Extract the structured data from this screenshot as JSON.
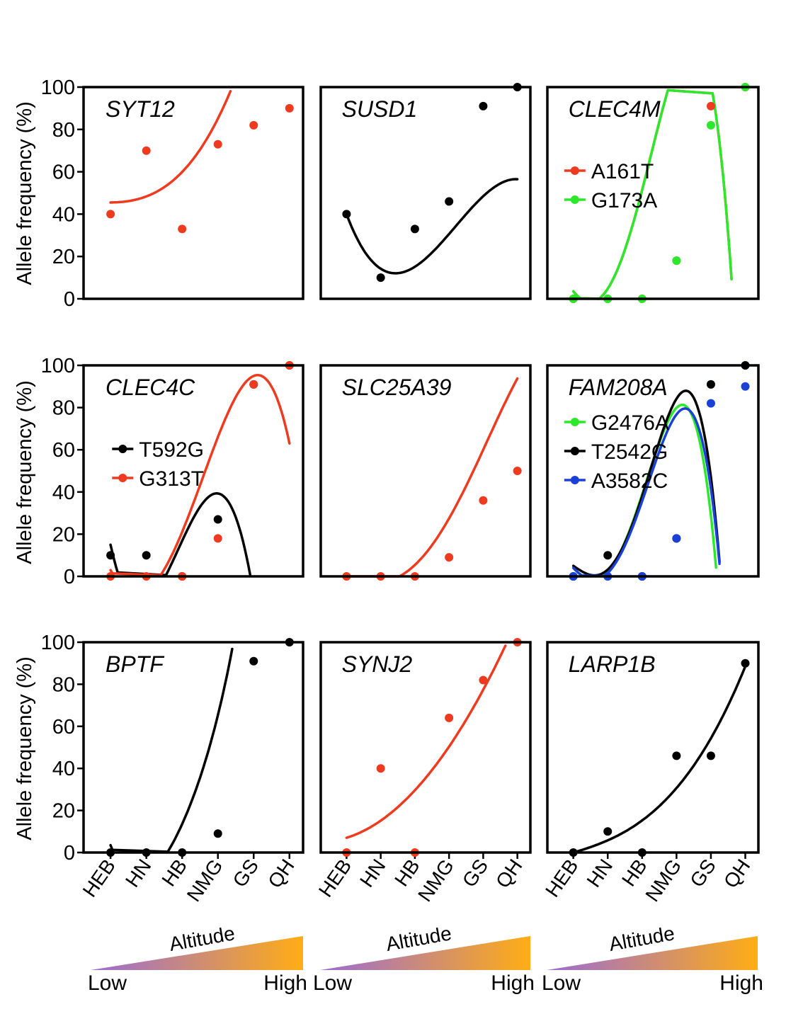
{
  "colors": {
    "red": "#ee3a1e",
    "black": "#000000",
    "green": "#2ce82a",
    "blue": "#1a40d6",
    "gradient_start": "#9b6bd6",
    "gradient_end": "#ffad14"
  },
  "common": {
    "ylabel": "Allele frequency (%)",
    "y_ticks": [
      "0",
      "20",
      "40",
      "60",
      "80",
      "100"
    ],
    "x_categories": [
      "HEB",
      "HN",
      "HB",
      "NMG",
      "GS",
      "QH"
    ],
    "altitude_label": "Altitude",
    "low_label": "Low",
    "high_label": "High"
  },
  "chart_data": [
    {
      "type": "scatter",
      "title": "SYT12",
      "ylim": [
        0,
        100
      ],
      "categories": [
        "HEB",
        "HN",
        "HB",
        "NMG",
        "GS",
        "QH"
      ],
      "series": [
        {
          "name": "",
          "color": "#ee3a1e",
          "values": [
            40,
            70,
            33,
            73,
            82,
            90
          ],
          "fit": [
            45.5,
            0.18,
            1.85,
            0.83,
            0,
            0
          ]
        }
      ]
    },
    {
      "type": "scatter",
      "title": "SUSD1",
      "ylim": [
        0,
        100
      ],
      "categories": [
        "HEB",
        "HN",
        "HB",
        "NMG",
        "GS",
        "QH"
      ],
      "series": [
        {
          "name": "",
          "color": "#000000",
          "values": [
            40,
            10,
            33,
            46,
            91,
            100
          ],
          "fit": [
            40,
            -43.2,
            19.44,
            -2.028,
            0,
            0
          ]
        }
      ]
    },
    {
      "type": "scatter",
      "title": "CLEC4M",
      "ylim": [
        0,
        100
      ],
      "categories": [
        "HEB",
        "HN",
        "HB",
        "NMG",
        "GS",
        "QH"
      ],
      "legend": [
        {
          "label": "A161T",
          "color": "#ee3a1e"
        },
        {
          "label": "G173A",
          "color": "#2ce82a"
        }
      ],
      "series": [
        {
          "name": "A161T",
          "color": "#ee3a1e",
          "values": [
            0,
            0,
            0,
            18,
            91,
            100
          ],
          "fit": [
            3.5,
            -19.5,
            15.6,
            7.25,
            -2.1,
            0
          ]
        },
        {
          "name": "G173A",
          "color": "#2ce82a",
          "values": [
            0,
            0,
            0,
            18,
            82,
            100
          ],
          "fit": [
            3.5,
            -19.5,
            15.6,
            7.25,
            -2.1,
            0
          ]
        }
      ]
    },
    {
      "type": "scatter",
      "title": "CLEC4C",
      "ylim": [
        0,
        100
      ],
      "categories": [
        "HEB",
        "HN",
        "HB",
        "NMG",
        "GS",
        "QH"
      ],
      "legend": [
        {
          "label": "T592G",
          "color": "#000000"
        },
        {
          "label": "G313T",
          "color": "#ee3a1e"
        }
      ],
      "series": [
        {
          "name": "T592G",
          "color": "#000000",
          "values": [
            10,
            10,
            0,
            27,
            91,
            100
          ],
          "fit": [
            15,
            -77.4,
            60.45,
            -10.65,
            0,
            0
          ]
        },
        {
          "name": "G313T",
          "color": "#ee3a1e",
          "values": [
            0,
            0,
            0,
            18,
            91,
            100
          ],
          "fit": [
            3,
            -33,
            24,
            -0.5,
            -0.5,
            0
          ]
        }
      ]
    },
    {
      "type": "scatter",
      "title": "SLC25A39",
      "ylim": [
        0,
        100
      ],
      "categories": [
        "HEB",
        "HN",
        "HB",
        "NMG",
        "GS",
        "QH"
      ],
      "series": [
        {
          "name": "",
          "color": "#ee3a1e",
          "values": [
            0,
            0,
            0,
            9,
            36,
            50
          ],
          "fit": [
            0,
            -6,
            1.45,
            1.95,
            -0.25,
            0
          ]
        }
      ]
    },
    {
      "type": "scatter",
      "title": "FAM208A",
      "ylim": [
        0,
        100
      ],
      "categories": [
        "HEB",
        "HN",
        "HB",
        "NMG",
        "GS",
        "QH"
      ],
      "legend": [
        {
          "label": "G2476A",
          "color": "#2ce82a"
        },
        {
          "label": "T2542G",
          "color": "#000000"
        },
        {
          "label": "A3582C",
          "color": "#1a40d6"
        }
      ],
      "series": [
        {
          "name": "G2476A",
          "color": "#2ce82a",
          "values": [
            0,
            0,
            0,
            18,
            91,
            100
          ],
          "fit": [
            4,
            -17,
            7.8,
            9.9,
            -2.6,
            0
          ]
        },
        {
          "name": "T2542G",
          "color": "#000000",
          "values": [
            0,
            10,
            0,
            18,
            91,
            100
          ],
          "fit": [
            5,
            -11.1,
            -1,
            13.2,
            -2.9,
            0
          ]
        },
        {
          "name": "A3582C",
          "color": "#1a40d6",
          "values": [
            0,
            0,
            0,
            18,
            82,
            90
          ],
          "fit": [
            4,
            -17,
            8.2,
            8.6,
            -2.25,
            0
          ]
        }
      ]
    },
    {
      "type": "scatter",
      "title": "BPTF",
      "ylim": [
        0,
        100
      ],
      "categories": [
        "HEB",
        "HN",
        "HB",
        "NMG",
        "GS",
        "QH"
      ],
      "series": [
        {
          "name": "",
          "color": "#000000",
          "values": [
            0,
            0,
            0,
            9,
            91,
            100
          ],
          "fit": [
            3.5,
            -46.3,
            40.15,
            -9.85,
            1.3,
            0
          ]
        }
      ]
    },
    {
      "type": "scatter",
      "title": "SYNJ2",
      "ylim": [
        0,
        100
      ],
      "categories": [
        "HEB",
        "HN",
        "HB",
        "NMG",
        "GS",
        "QH"
      ],
      "series": [
        {
          "name": "",
          "color": "#ee3a1e",
          "values": [
            0,
            40,
            0,
            64,
            82,
            100
          ],
          "fit": [
            7,
            5,
            3.15,
            0,
            0,
            0
          ]
        }
      ]
    },
    {
      "type": "scatter",
      "title": "LARP1B",
      "ylim": [
        0,
        100
      ],
      "categories": [
        "HEB",
        "HN",
        "HB",
        "NMG",
        "GS",
        "QH"
      ],
      "series": [
        {
          "name": "",
          "color": "#000000",
          "values": [
            0,
            10,
            0,
            46,
            46,
            90
          ],
          "fit": [
            0,
            4.7,
            0.7,
            0.38,
            0,
            0
          ]
        }
      ]
    }
  ]
}
